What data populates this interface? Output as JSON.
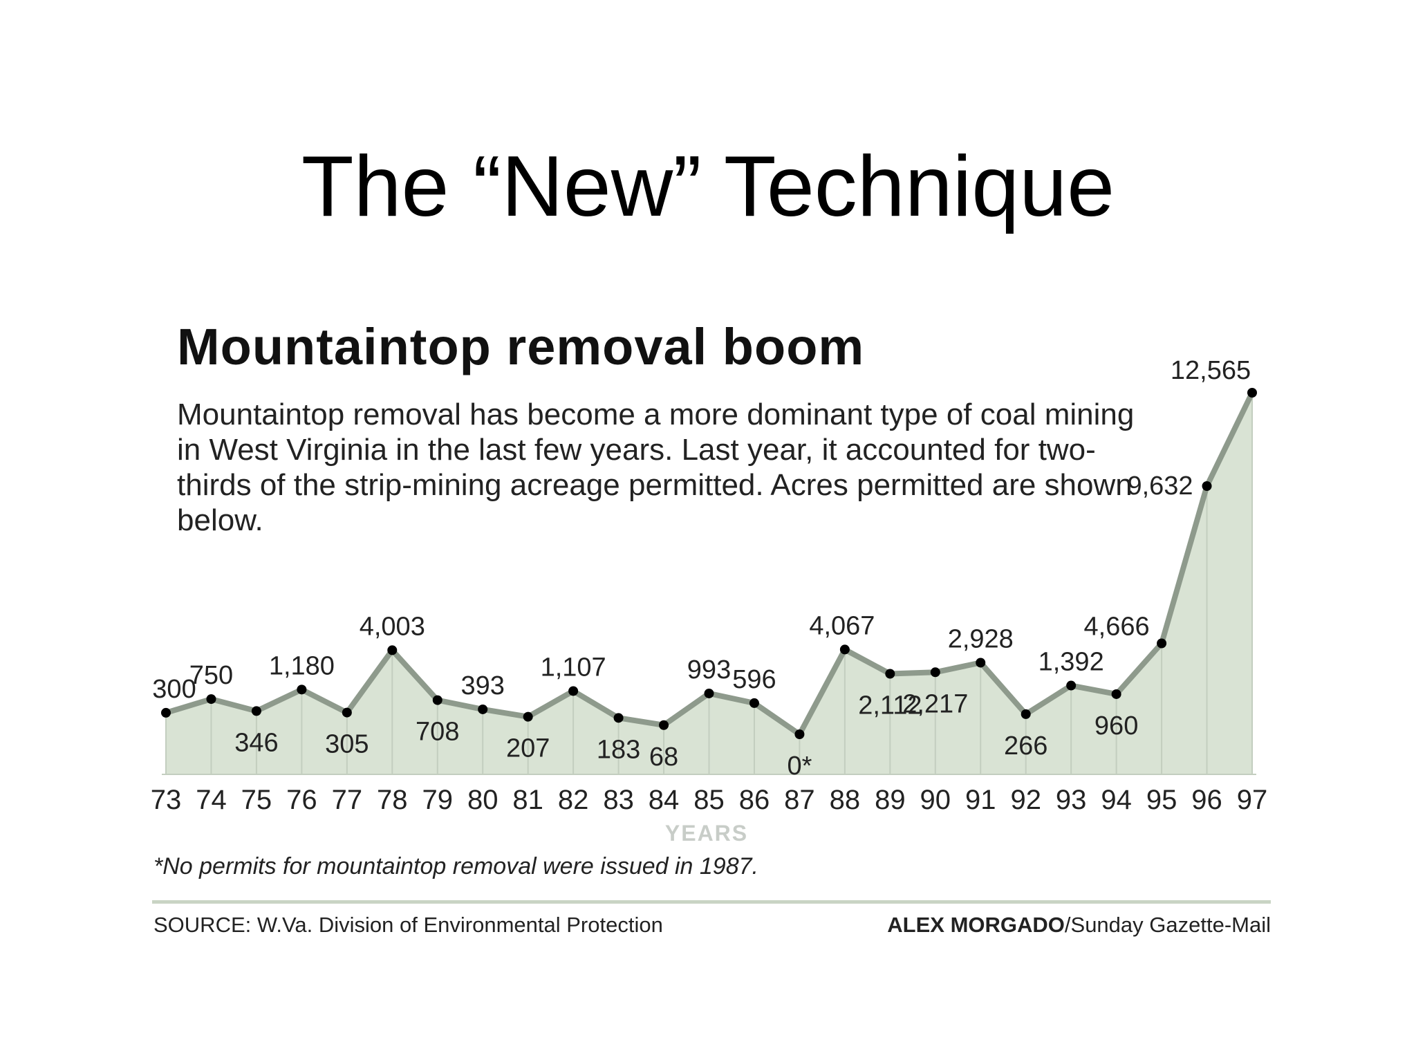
{
  "slide": {
    "title": "The “New” Technique"
  },
  "graphic": {
    "title": "Mountaintop removal boom",
    "subtitle": "Mountaintop removal has become a more dominant type of coal mining in West Virginia in the last few years. Last year, it accounted for two-thirds of the strip-mining acreage permitted. Acres permitted are shown below.",
    "footnote": "*No permits for mountaintop removal were issued in 1987.",
    "source": "SOURCE: W.Va. Division of Environmental Protection",
    "credit_name": "ALEX MORGADO",
    "credit_outlet": "/Sunday Gazette-Mail"
  },
  "chart_data": {
    "type": "area",
    "title": "Mountaintop removal boom",
    "xlabel": "YEARS",
    "ylabel": "",
    "categories": [
      "73",
      "74",
      "75",
      "76",
      "77",
      "78",
      "79",
      "80",
      "81",
      "82",
      "83",
      "84",
      "85",
      "86",
      "87",
      "88",
      "89",
      "90",
      "91",
      "92",
      "93",
      "94",
      "95",
      "96",
      "97"
    ],
    "values": [
      300,
      750,
      346,
      1180,
      305,
      4003,
      708,
      393,
      207,
      1107,
      183,
      68,
      993,
      596,
      0,
      4067,
      2112,
      2217,
      2928,
      266,
      1392,
      960,
      4666,
      9632,
      12565
    ],
    "data_labels": [
      "300",
      "750",
      "346",
      "1,180",
      "305",
      "4,003",
      "708",
      "393",
      "207",
      "1,107",
      "183",
      "68",
      "993",
      "596",
      "0*",
      "4,067",
      "2,112",
      "2,217",
      "2,928",
      "266",
      "1,392",
      "960",
      "4,666",
      "9,632",
      "12,565"
    ],
    "label_positions": [
      "above",
      "above",
      "below",
      "above",
      "below",
      "above",
      "below",
      "above",
      "below",
      "above",
      "below",
      "below",
      "above",
      "above",
      "below",
      "above",
      "below",
      "below",
      "above",
      "below",
      "above",
      "below",
      "above",
      "left",
      "above"
    ],
    "ylim": [
      0,
      12565
    ],
    "grid": true,
    "colors": {
      "area_fill": "#d9e3d4",
      "line": "#8e9a8c",
      "point": "#000000",
      "grid": "#c3cebf",
      "axis_label": "#c8cdc8"
    }
  }
}
